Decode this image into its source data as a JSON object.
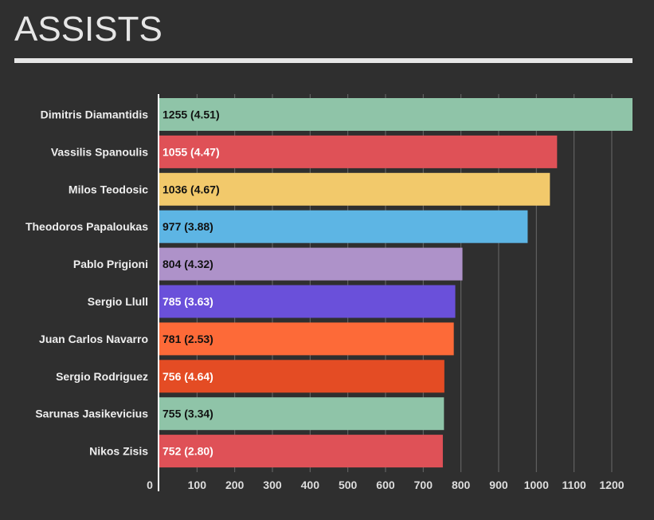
{
  "chart_data": {
    "type": "bar",
    "orientation": "horizontal",
    "title": "ASSISTS",
    "xlabel": "",
    "ylabel": "",
    "xlim": [
      0,
      1255
    ],
    "ticks": [
      0,
      100,
      200,
      300,
      400,
      500,
      600,
      700,
      800,
      900,
      1000,
      1100,
      1200
    ],
    "grid": true,
    "categories": [
      "Dimitris Diamantidis",
      "Vassilis Spanoulis",
      "Milos Teodosic",
      "Theodoros Papaloukas",
      "Pablo Prigioni",
      "Sergio Llull",
      "Juan Carlos Navarro",
      "Sergio Rodriguez",
      "Sarunas Jasikevicius",
      "Nikos Zisis"
    ],
    "values": [
      1255,
      1055,
      1036,
      977,
      804,
      785,
      781,
      756,
      755,
      752
    ],
    "per_game": [
      "4.51",
      "4.47",
      "4.67",
      "3.88",
      "4.32",
      "3.63",
      "2.53",
      "4.64",
      "3.34",
      "2.80"
    ],
    "bar_labels": [
      "1255 (4.51)",
      "1055 (4.47)",
      "1036 (4.67)",
      "977 (3.88)",
      "804 (4.32)",
      "785 (3.63)",
      "781 (2.53)",
      "756 (4.64)",
      "755 (3.34)",
      "752 (2.80)"
    ],
    "colors": [
      "#8fc4a8",
      "#df5157",
      "#f2c96b",
      "#5db5e4",
      "#ae92c9",
      "#6a50da",
      "#fd6a38",
      "#e44c24",
      "#8fc4a8",
      "#df5157"
    ],
    "label_colors": [
      "#111111",
      "#ffffff",
      "#111111",
      "#111111",
      "#111111",
      "#ffffff",
      "#111111",
      "#ffffff",
      "#111111",
      "#ffffff"
    ]
  }
}
